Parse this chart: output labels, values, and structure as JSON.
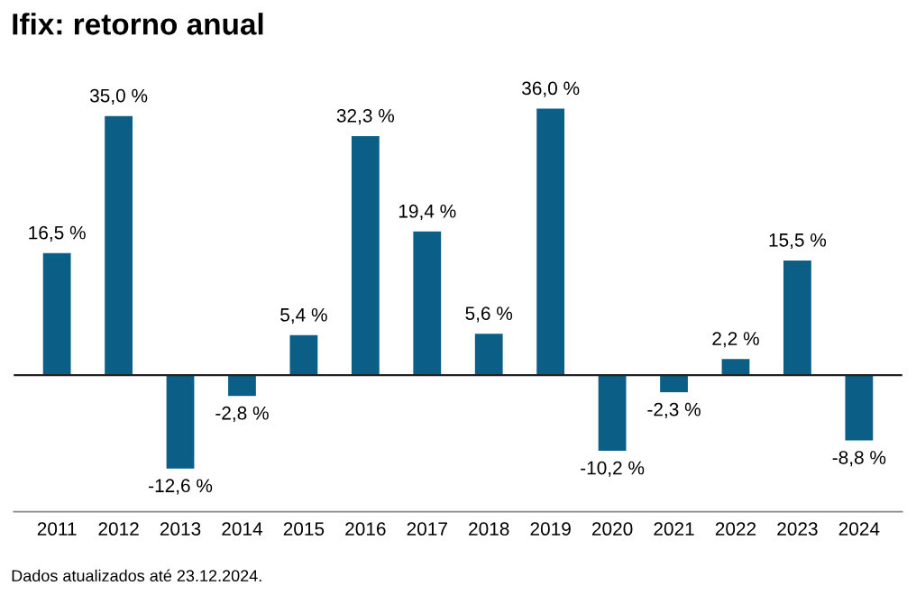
{
  "chart_data": {
    "type": "bar",
    "title": "Ifix: retorno anual",
    "categories": [
      "2011",
      "2012",
      "2013",
      "2014",
      "2015",
      "2016",
      "2017",
      "2018",
      "2019",
      "2020",
      "2021",
      "2022",
      "2023",
      "2024"
    ],
    "values": [
      16.5,
      35.0,
      -12.6,
      -2.8,
      5.4,
      32.3,
      19.4,
      5.6,
      36.0,
      -10.2,
      -2.3,
      2.2,
      15.5,
      -8.8
    ],
    "value_labels": [
      "16,5 %",
      "35,0 %",
      "-12,6 %",
      "-2,8 %",
      "5,4 %",
      "32,3 %",
      "19,4 %",
      "5,6 %",
      "36,0 %",
      "-10,2 %",
      "-2,3 %",
      "2,2 %",
      "15,5 %",
      "-8,8 %"
    ],
    "color": "#0b5e85",
    "tick_labels": "x",
    "annotations": [
      "Dados atualizados até 23.12.2024."
    ]
  }
}
